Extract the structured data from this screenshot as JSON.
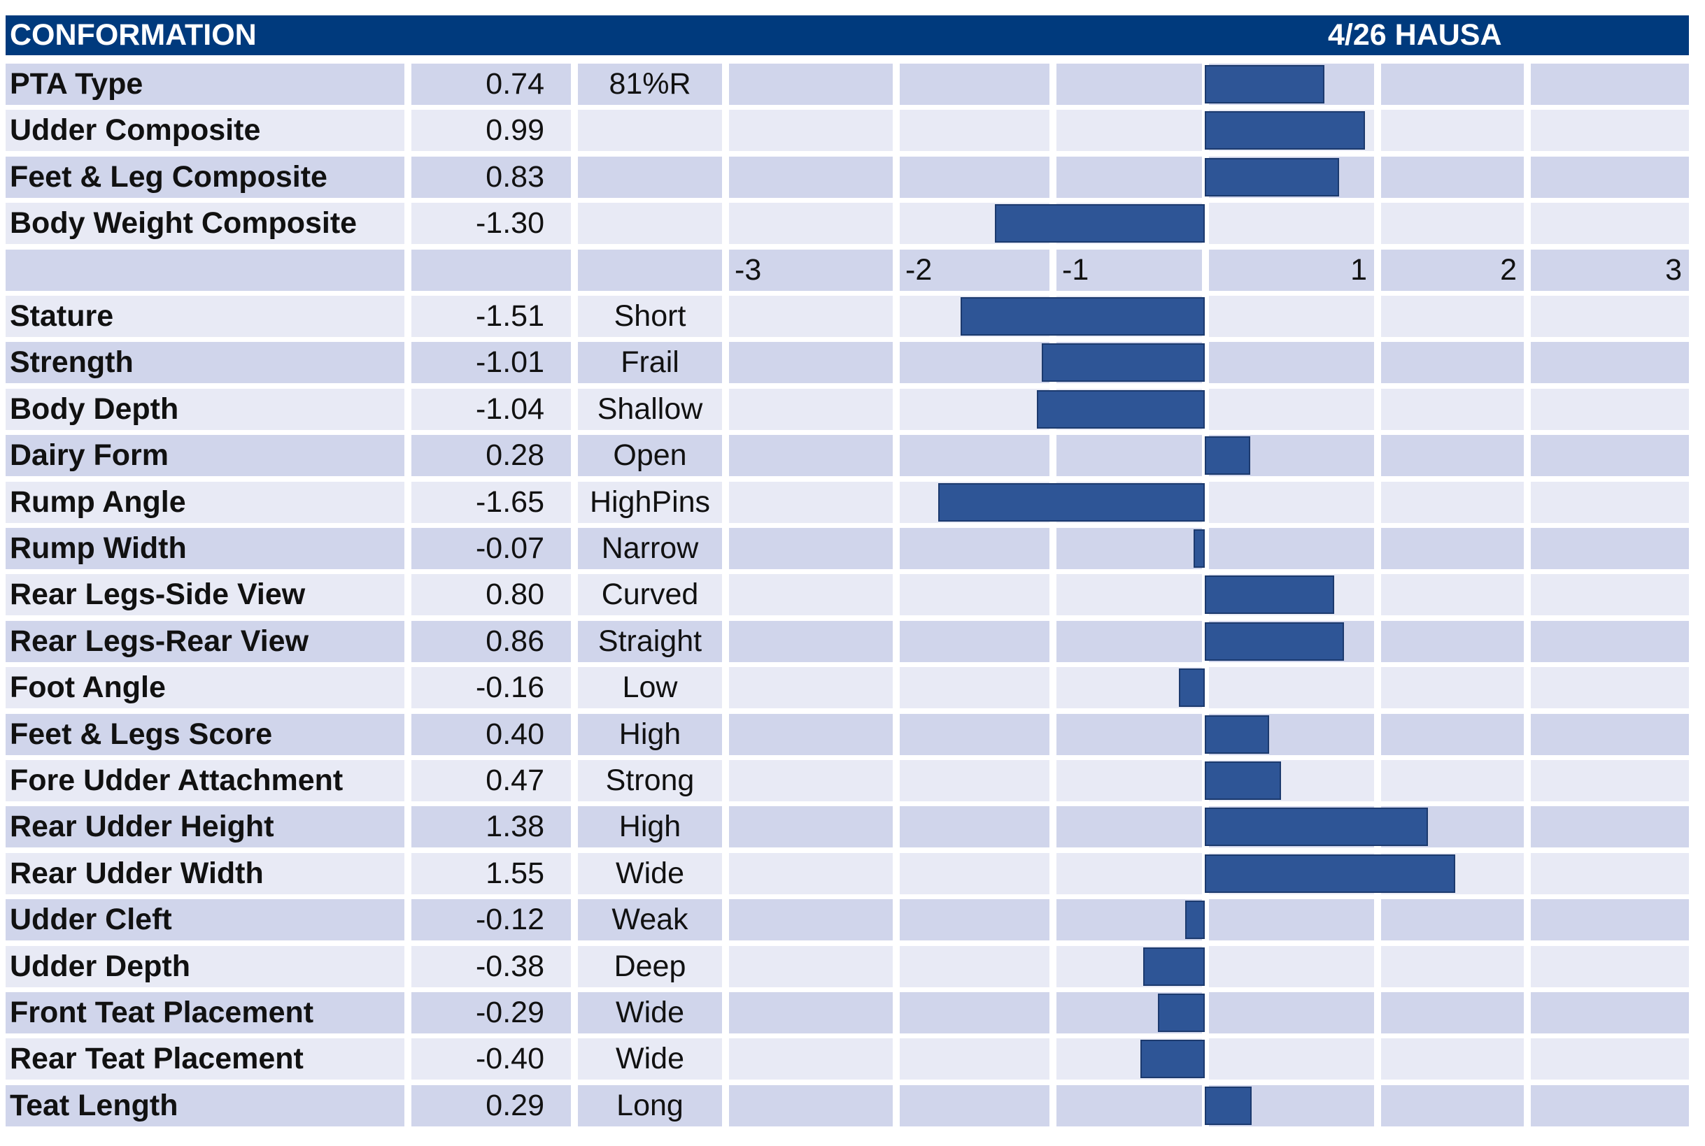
{
  "header": {
    "title": "CONFORMATION",
    "date": "4/26 HAUSA"
  },
  "colors": {
    "header_bg": "#003a7d",
    "bar": "#2e5596",
    "row_dark": "#d0d5eb",
    "row_light": "#e8eaf5"
  },
  "chart_data": {
    "type": "bar",
    "orientation": "horizontal",
    "xlim": [
      -3,
      3
    ],
    "ticks": [
      "-3",
      "-2",
      "-1",
      "1",
      "2",
      "3"
    ],
    "composites": [
      {
        "name": "PTA Type",
        "value": 0.74,
        "value_text": "0.74",
        "desc": "81%R"
      },
      {
        "name": "Udder Composite",
        "value": 0.99,
        "value_text": "0.99",
        "desc": ""
      },
      {
        "name": "Feet & Leg Composite",
        "value": 0.83,
        "value_text": "0.83",
        "desc": ""
      },
      {
        "name": "Body Weight Composite",
        "value": -1.3,
        "value_text": "-1.30",
        "desc": ""
      }
    ],
    "traits": [
      {
        "name": "Stature",
        "value": -1.51,
        "value_text": "-1.51",
        "desc": "Short"
      },
      {
        "name": "Strength",
        "value": -1.01,
        "value_text": "-1.01",
        "desc": "Frail"
      },
      {
        "name": "Body Depth",
        "value": -1.04,
        "value_text": "-1.04",
        "desc": "Shallow"
      },
      {
        "name": "Dairy Form",
        "value": 0.28,
        "value_text": "0.28",
        "desc": "Open"
      },
      {
        "name": "Rump Angle",
        "value": -1.65,
        "value_text": "-1.65",
        "desc": "HighPins"
      },
      {
        "name": "Rump Width",
        "value": -0.07,
        "value_text": "-0.07",
        "desc": "Narrow"
      },
      {
        "name": "Rear Legs-Side View",
        "value": 0.8,
        "value_text": "0.80",
        "desc": "Curved"
      },
      {
        "name": "Rear Legs-Rear View",
        "value": 0.86,
        "value_text": "0.86",
        "desc": "Straight"
      },
      {
        "name": "Foot Angle",
        "value": -0.16,
        "value_text": "-0.16",
        "desc": "Low"
      },
      {
        "name": "Feet & Legs Score",
        "value": 0.4,
        "value_text": "0.40",
        "desc": "High"
      },
      {
        "name": "Fore Udder Attachment",
        "value": 0.47,
        "value_text": "0.47",
        "desc": "Strong"
      },
      {
        "name": "Rear Udder Height",
        "value": 1.38,
        "value_text": "1.38",
        "desc": "High"
      },
      {
        "name": "Rear Udder Width",
        "value": 1.55,
        "value_text": "1.55",
        "desc": "Wide"
      },
      {
        "name": "Udder Cleft",
        "value": -0.12,
        "value_text": "-0.12",
        "desc": "Weak"
      },
      {
        "name": "Udder Depth",
        "value": -0.38,
        "value_text": "-0.38",
        "desc": "Deep"
      },
      {
        "name": "Front Teat Placement",
        "value": -0.29,
        "value_text": "-0.29",
        "desc": "Wide"
      },
      {
        "name": "Rear Teat Placement",
        "value": -0.4,
        "value_text": "-0.40",
        "desc": "Wide"
      },
      {
        "name": "Teat Length",
        "value": 0.29,
        "value_text": "0.29",
        "desc": "Long"
      }
    ]
  }
}
